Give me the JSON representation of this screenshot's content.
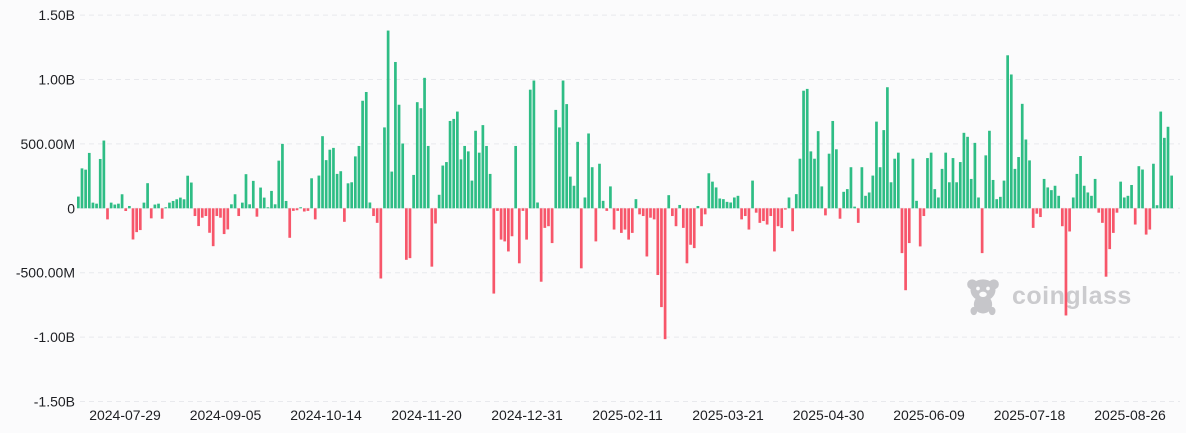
{
  "chart_data": {
    "type": "bar",
    "title": "",
    "xlabel": "",
    "ylabel": "",
    "legend": "none",
    "grid": "dashed-horizontal",
    "unit": "USD",
    "ylim_M": [
      -1500,
      1500
    ],
    "y_ticks": [
      {
        "label": "1.50B",
        "value_M": 1500
      },
      {
        "label": "1.00B",
        "value_M": 1000
      },
      {
        "label": "500.00M",
        "value_M": 500
      },
      {
        "label": "0",
        "value_M": 0
      },
      {
        "label": "-500.00M",
        "value_M": -500
      },
      {
        "label": "-1.00B",
        "value_M": -1000
      },
      {
        "label": "-1.50B",
        "value_M": -1500
      }
    ],
    "x_tick_labels": [
      "2024-07-29",
      "2024-09-05",
      "2024-10-14",
      "2024-11-20",
      "2024-12-31",
      "2025-02-11",
      "2025-03-21",
      "2025-04-30",
      "2025-06-09",
      "2025-07-18",
      "2025-08-26"
    ],
    "positive_color": "#2ebd85",
    "negative_color": "#f7566a",
    "grid_color": "#e8e9ed",
    "text_color": "#1e1f23",
    "background_color": "#fbfbfc",
    "values_M": [
      91,
      310,
      300,
      430,
      44,
      36,
      383,
      526,
      -86,
      44,
      29,
      36,
      109,
      -21,
      18,
      -242,
      -185,
      -169,
      44,
      195,
      -78,
      29,
      36,
      -81,
      8,
      44,
      57,
      70,
      83,
      70,
      253,
      200,
      -60,
      -138,
      -73,
      -60,
      -190,
      -294,
      -60,
      -73,
      -200,
      -164,
      31,
      109,
      -60,
      44,
      265,
      31,
      213,
      -65,
      161,
      83,
      5,
      135,
      31,
      370,
      500,
      57,
      -229,
      -20,
      -15,
      8,
      -25,
      -20,
      233,
      -86,
      254,
      560,
      374,
      455,
      469,
      267,
      288,
      -105,
      194,
      202,
      403,
      484,
      835,
      903,
      45,
      -60,
      -113,
      -545,
      628,
      1380,
      285,
      1136,
      804,
      503,
      -400,
      -387,
      259,
      824,
      777,
      1013,
      484,
      -453,
      -118,
      105,
      332,
      359,
      678,
      694,
      751,
      380,
      484,
      442,
      215,
      602,
      432,
      646,
      484,
      267,
      -662,
      -20,
      -243,
      -257,
      -335,
      -217,
      484,
      -427,
      -20,
      -243,
      921,
      992,
      45,
      -570,
      -152,
      -139,
      -270,
      764,
      628,
      992,
      809,
      246,
      175,
      516,
      -466,
      84,
      581,
      319,
      -257,
      346,
      58,
      -20,
      170,
      -165,
      -20,
      -191,
      -165,
      -243,
      -191,
      71,
      -47,
      -60,
      -374,
      -73,
      -86,
      -518,
      -767,
      -1016,
      102,
      -60,
      -139,
      26,
      -152,
      -427,
      -283,
      -309,
      18,
      -139,
      -47,
      272,
      207,
      162,
      76,
      71,
      50,
      45,
      84,
      97,
      -86,
      -60,
      -165,
      215,
      -34,
      -113,
      -99,
      -126,
      -60,
      -335,
      -139,
      -152,
      -10,
      84,
      -178,
      110,
      385,
      913,
      927,
      442,
      385,
      599,
      170,
      -55,
      424,
      678,
      458,
      -81,
      128,
      149,
      319,
      13,
      -113,
      319,
      97,
      123,
      254,
      673,
      319,
      607,
      940,
      202,
      385,
      432,
      -348,
      -636,
      -270,
      385,
      58,
      -296,
      -60,
      390,
      432,
      149,
      84,
      306,
      432,
      202,
      390,
      202,
      359,
      586,
      555,
      228,
      508,
      84,
      -348,
      411,
      602,
      220,
      71,
      89,
      215,
      1188,
      1039,
      306,
      398,
      811,
      534,
      372,
      -152,
      -42,
      -68,
      228,
      162,
      141,
      175,
      97,
      -139,
      -832,
      -180,
      84,
      267,
      406,
      175,
      123,
      97,
      228,
      -34,
      -113,
      -531,
      -317,
      -191,
      -34,
      207,
      84,
      97,
      181,
      -126,
      327,
      301,
      -204,
      -165,
      346,
      24,
      751,
      547,
      633,
      254
    ]
  },
  "watermark": {
    "text": "coinglass",
    "icon": "coinglass-bear-icon",
    "color": "#cbcbce"
  }
}
